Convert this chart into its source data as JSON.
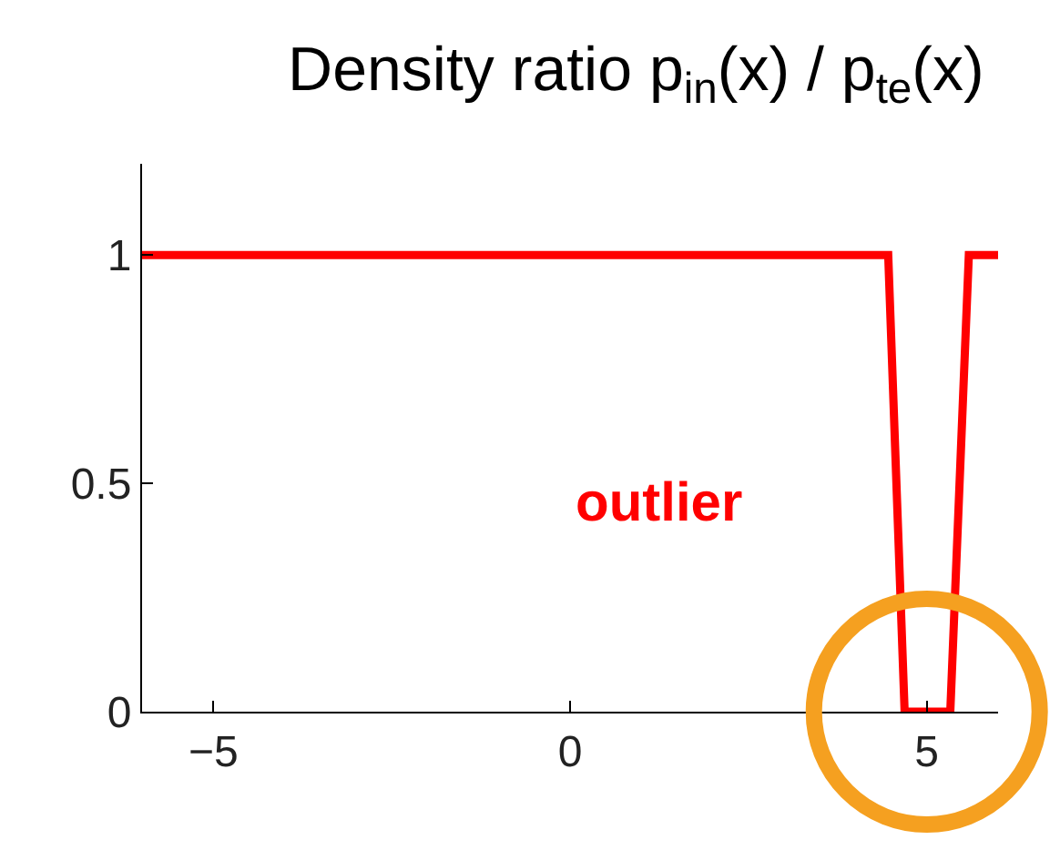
{
  "chart_data": {
    "type": "line",
    "title": "Density ratio p$_{in}$(x) / p$_{te}$(x)",
    "x": [
      -6,
      4.46,
      4.69,
      5.33,
      5.59,
      6
    ],
    "series": [
      {
        "color": "#ff0000",
        "values": [
          1,
          1,
          0,
          0,
          1,
          1
        ]
      }
    ],
    "xlim": [
      -6,
      6
    ],
    "xticks": [
      -5,
      0,
      5
    ],
    "ylim": [
      0,
      1.2
    ],
    "yticks": [
      0,
      0.5,
      1
    ],
    "marker": "none",
    "line_style": "solid",
    "annotations": [
      "outlier"
    ]
  }
}
